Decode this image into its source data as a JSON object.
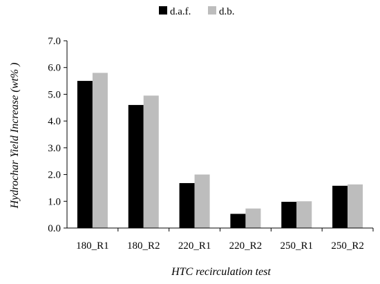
{
  "chart_data": {
    "type": "bar",
    "title": "",
    "xlabel": "HTC recirculation test",
    "ylabel": "Hydrochar Yield Increase (wt% )",
    "categories": [
      "180_R1",
      "180_R2",
      "220_R1",
      "220_R2",
      "250_R1",
      "250_R2"
    ],
    "series": [
      {
        "name": "d.a.f.",
        "color": "#000000",
        "values": [
          5.5,
          4.6,
          1.68,
          0.53,
          0.98,
          1.58
        ]
      },
      {
        "name": "d.b.",
        "color": "#bdbdbd",
        "values": [
          5.8,
          4.95,
          2.0,
          0.73,
          1.0,
          1.63
        ]
      }
    ],
    "ylim": [
      0,
      7
    ],
    "yticks": [
      "0.0",
      "1.0",
      "2.0",
      "3.0",
      "4.0",
      "5.0",
      "6.0",
      "7.0"
    ],
    "grid": false,
    "legend_position": "top-center"
  }
}
